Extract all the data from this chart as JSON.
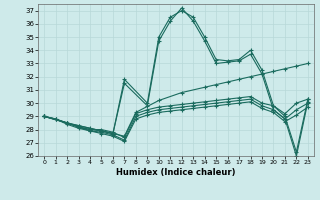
{
  "xlabel": "Humidex (Indice chaleur)",
  "ylabel": "",
  "bg_color": "#ceeaea",
  "line_color": "#1a6b5e",
  "grid_color": "#b8d8d8",
  "xlim": [
    -0.5,
    23.5
  ],
  "ylim": [
    26,
    37.5
  ],
  "yticks": [
    26,
    27,
    28,
    29,
    30,
    31,
    32,
    33,
    34,
    35,
    36,
    37
  ],
  "xticks": [
    0,
    1,
    2,
    3,
    4,
    5,
    6,
    7,
    8,
    9,
    10,
    11,
    12,
    13,
    14,
    15,
    16,
    17,
    18,
    19,
    20,
    21,
    22,
    23
  ],
  "lines": [
    {
      "x": [
        0,
        2,
        3,
        4,
        5,
        6,
        7,
        9,
        10,
        11,
        12,
        13,
        14,
        15,
        16,
        17,
        18,
        19,
        20,
        21,
        22,
        23
      ],
      "y": [
        29,
        28.5,
        28.3,
        28.1,
        27.9,
        27.7,
        31.8,
        30.0,
        35.0,
        36.5,
        37.0,
        36.5,
        35.0,
        33.3,
        33.2,
        33.3,
        34.0,
        32.5,
        29.8,
        29.0,
        26.3,
        30.3
      ]
    },
    {
      "x": [
        0,
        2,
        3,
        4,
        5,
        6,
        7,
        9,
        10,
        11,
        12,
        13,
        14,
        15,
        16,
        17,
        18,
        19,
        20,
        21,
        22,
        23
      ],
      "y": [
        29,
        28.5,
        28.2,
        28.0,
        27.9,
        27.7,
        31.5,
        29.8,
        34.7,
        36.2,
        37.2,
        36.2,
        34.7,
        33.0,
        33.1,
        33.2,
        33.7,
        32.2,
        29.5,
        28.8,
        26.0,
        30.1
      ]
    },
    {
      "x": [
        0,
        2,
        3,
        5,
        6,
        7,
        8,
        10,
        12,
        14,
        15,
        16,
        17,
        18,
        19,
        20,
        21,
        22,
        23
      ],
      "y": [
        29,
        28.5,
        28.3,
        27.9,
        27.7,
        27.5,
        29.3,
        30.2,
        30.8,
        31.2,
        31.4,
        31.6,
        31.8,
        32.0,
        32.2,
        32.4,
        32.6,
        32.8,
        33.0
      ]
    },
    {
      "x": [
        0,
        1,
        2,
        3,
        4,
        5,
        6,
        7,
        8,
        9,
        10,
        11,
        12,
        13,
        14,
        15,
        16,
        17,
        18,
        19,
        20,
        21,
        22,
        23
      ],
      "y": [
        29,
        28.8,
        28.5,
        28.2,
        28.0,
        28.0,
        27.8,
        27.4,
        29.2,
        29.5,
        29.7,
        29.8,
        29.9,
        30.0,
        30.1,
        30.2,
        30.3,
        30.4,
        30.5,
        30.0,
        29.8,
        29.2,
        30.0,
        30.3
      ]
    },
    {
      "x": [
        0,
        1,
        2,
        3,
        4,
        5,
        6,
        7,
        8,
        9,
        10,
        11,
        12,
        13,
        14,
        15,
        16,
        17,
        18,
        19,
        20,
        21,
        22,
        23
      ],
      "y": [
        29,
        28.8,
        28.5,
        28.2,
        27.9,
        27.8,
        27.6,
        27.2,
        29.0,
        29.3,
        29.5,
        29.6,
        29.7,
        29.8,
        29.9,
        30.0,
        30.1,
        30.2,
        30.3,
        29.8,
        29.5,
        28.8,
        29.5,
        30.0
      ]
    },
    {
      "x": [
        0,
        1,
        2,
        3,
        4,
        5,
        6,
        7,
        8,
        9,
        10,
        11,
        12,
        13,
        14,
        15,
        16,
        17,
        18,
        19,
        20,
        21,
        22,
        23
      ],
      "y": [
        29,
        28.8,
        28.4,
        28.1,
        27.9,
        27.7,
        27.5,
        27.1,
        28.8,
        29.1,
        29.3,
        29.4,
        29.5,
        29.6,
        29.7,
        29.8,
        29.9,
        30.0,
        30.1,
        29.6,
        29.3,
        28.6,
        29.1,
        29.7
      ]
    }
  ]
}
